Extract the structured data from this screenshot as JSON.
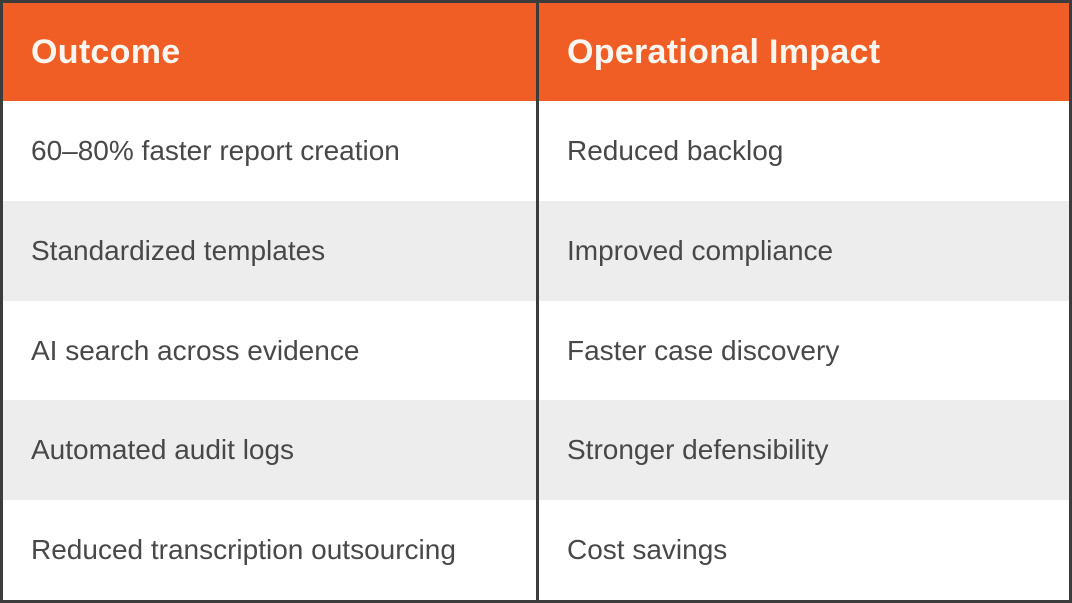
{
  "chart_data": {
    "type": "table",
    "columns": [
      "Outcome",
      "Operational Impact"
    ],
    "rows": [
      [
        "60–80% faster report creation",
        "Reduced backlog"
      ],
      [
        "Standardized templates",
        "Improved compliance"
      ],
      [
        "AI search across evidence",
        "Faster case discovery"
      ],
      [
        "Automated audit logs",
        "Stronger defensibility"
      ],
      [
        "Reduced transcription outsourcing",
        "Cost savings"
      ]
    ]
  },
  "colors": {
    "header_bg": "#F05E26",
    "header_text": "#FBF6EF",
    "row_bg": "#FFFFFF",
    "row_alt_bg": "#EDEDED",
    "body_text": "#484848",
    "border": "#3C3C3C"
  }
}
